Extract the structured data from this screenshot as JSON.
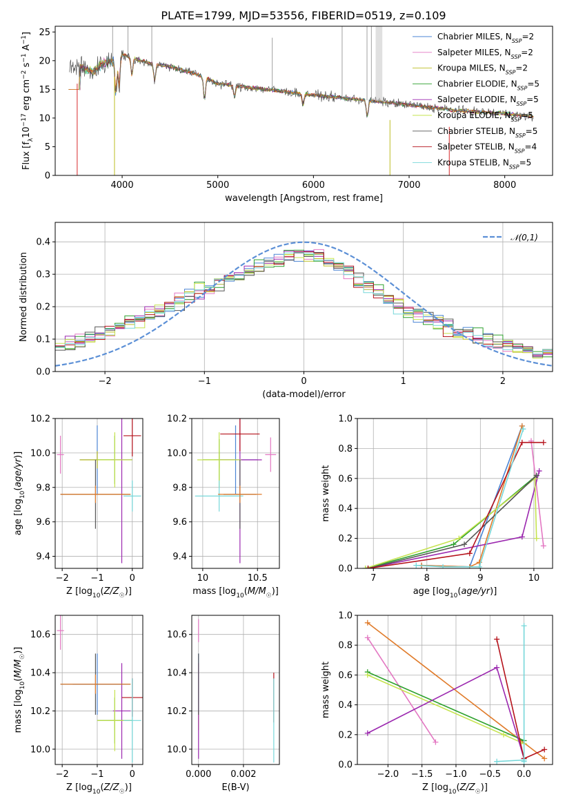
{
  "figure": {
    "title": "PLATE=1799, MJD=53556, FIBERID=0519, z=0.109",
    "models": [
      {
        "name": "Chabrier MILES",
        "nssp": "2",
        "color": "#4a84d4"
      },
      {
        "name": "Salpeter MILES",
        "nssp": "2",
        "color": "#e377c2"
      },
      {
        "name": "Kroupa MILES",
        "nssp": "2",
        "color": "#bcbd22"
      },
      {
        "name": "Chabrier ELODIE",
        "nssp": "5",
        "color": "#2ca02c"
      },
      {
        "name": "Salpeter ELODIE",
        "nssp": "5",
        "color": "#9b27af"
      },
      {
        "name": "Kroupa ELODIE",
        "nssp": "5",
        "color": "#c5e34e"
      },
      {
        "name": "Chabrier STELIB",
        "nssp": "5",
        "color": "#555555"
      },
      {
        "name": "Salpeter STELIB",
        "nssp": "4",
        "color": "#b5121b"
      },
      {
        "name": "Kroupa STELIB",
        "nssp": "5",
        "color": "#76d7d9"
      }
    ],
    "orange_color": "#e07b2a"
  },
  "chart_data": [
    {
      "id": "spectrum",
      "type": "line",
      "xlabel": "wavelength [Angstrom, rest frame]",
      "ylabel": "Flux [f_λ 10^-17 erg cm^-2 s^-1 A^-1]",
      "xlim": [
        3300,
        8500
      ],
      "ylim": [
        0,
        26
      ],
      "xticks": [
        4000,
        5000,
        6000,
        7000,
        8000
      ],
      "yticks": [
        0,
        5,
        10,
        15,
        20,
        25
      ],
      "grid": false,
      "legend": "upper-right",
      "continuum_x": [
        3550,
        3700,
        3800,
        3900,
        4000,
        4100,
        4300,
        4500,
        4800,
        5000,
        5500,
        6000,
        6500,
        7000,
        7500,
        8000,
        8300
      ],
      "continuum_y": [
        19,
        18,
        19.5,
        20,
        21,
        20.5,
        19.5,
        19,
        17.5,
        16,
        15,
        14,
        13.2,
        12.3,
        11.3,
        10.8,
        10.2
      ]
    },
    {
      "id": "residuals",
      "type": "line",
      "xlabel": "(data-model)/error",
      "ylabel": "Normed distribution",
      "xlim": [
        -2.5,
        2.5
      ],
      "ylim": [
        0,
        0.46
      ],
      "xticks": [
        -2,
        -1,
        0,
        1,
        2
      ],
      "yticks": [
        0.0,
        0.1,
        0.2,
        0.3,
        0.4
      ],
      "grid": true,
      "legend": "upper-right",
      "reference_label": "𝒩(0,1)",
      "reference_color": "#5b8fd6"
    },
    {
      "id": "age-vs-Z",
      "type": "scatter",
      "xlabel": "Z [log10(Z/Z☉)]",
      "ylabel": "age  [log10(age/yr)]",
      "xlim": [
        -2.2,
        0.3
      ],
      "ylim": [
        9.33,
        10.2
      ],
      "xticks": [
        -2,
        -1,
        0
      ],
      "yticks": [
        9.4,
        9.6,
        9.8,
        10.0,
        10.2
      ],
      "grid": true,
      "points": [
        {
          "m": 0,
          "x": -1.0,
          "y": 9.96,
          "ex": 0.5,
          "ey": 0.2
        },
        {
          "m": 1,
          "x": -2.05,
          "y": 9.99,
          "ex": 0.1,
          "ey": 0.11
        },
        {
          "m": 2,
          "x": -1.0,
          "y": 9.96,
          "ex": 0.5,
          "ey": 0.05
        },
        {
          "m": 3,
          "x": -0.5,
          "y": 9.96,
          "ex": 0.5,
          "ey": 0.14
        },
        {
          "m": 4,
          "x": -0.3,
          "y": 9.96,
          "ex": 0.3,
          "ey": 0.6
        },
        {
          "m": 5,
          "x": -0.5,
          "y": 9.96,
          "ex": 0.5,
          "ey": 0.16
        },
        {
          "m": 6,
          "x": -1.05,
          "y": 9.76,
          "ex": 1.0,
          "ey": 0.2
        },
        {
          "m": 7,
          "x": 0.0,
          "y": 10.1,
          "ex": 0.25,
          "ey": 0.12
        },
        {
          "m": 8,
          "x": 0.0,
          "y": 9.75,
          "ex": 0.25,
          "ey": 0.09
        },
        {
          "m": 9,
          "x": -1.05,
          "y": 9.76,
          "ex": 1.0,
          "ey": 0.05
        }
      ]
    },
    {
      "id": "age-vs-mass",
      "type": "scatter",
      "xlabel": "mass [log10(M/M☉)]",
      "ylabel": "",
      "xlim": [
        9.9,
        10.7
      ],
      "ylim": [
        9.33,
        10.2
      ],
      "xticks": [
        10.0,
        10.5
      ],
      "yticks": [
        9.4,
        9.6,
        9.8,
        10.0,
        10.2
      ],
      "grid": true,
      "points": [
        {
          "m": 0,
          "x": 10.3,
          "y": 9.96,
          "ex": 0.2,
          "ey": 0.2
        },
        {
          "m": 1,
          "x": 10.62,
          "y": 9.99,
          "ex": 0.05,
          "ey": 0.1
        },
        {
          "m": 2,
          "x": 10.15,
          "y": 9.96,
          "ex": 0.15,
          "ey": 0.05
        },
        {
          "m": 3,
          "x": 10.15,
          "y": 9.96,
          "ex": 0.15,
          "ey": 0.12
        },
        {
          "m": 4,
          "x": 10.34,
          "y": 9.96,
          "ex": 0.2,
          "ey": 0.6
        },
        {
          "m": 5,
          "x": 10.15,
          "y": 9.96,
          "ex": 0.2,
          "ey": 0.16
        },
        {
          "m": 6,
          "x": 10.34,
          "y": 9.76,
          "ex": 0.15,
          "ey": 0.2
        },
        {
          "m": 7,
          "x": 10.34,
          "y": 10.11,
          "ex": 0.18,
          "ey": 0.1
        },
        {
          "m": 8,
          "x": 10.15,
          "y": 9.75,
          "ex": 0.22,
          "ey": 0.09
        },
        {
          "m": 9,
          "x": 10.34,
          "y": 9.76,
          "ex": 0.2,
          "ey": 0.05
        }
      ]
    },
    {
      "id": "weight-vs-age",
      "type": "line",
      "xlabel": "age  [log10(age/yr)]",
      "ylabel": "mass weight",
      "xlim": [
        6.7,
        10.35
      ],
      "ylim": [
        0,
        1
      ],
      "xticks": [
        7,
        8,
        9,
        10
      ],
      "yticks": [
        0.0,
        0.2,
        0.4,
        0.6,
        0.8,
        1.0
      ],
      "grid": true,
      "series": [
        {
          "m": 0,
          "x": [
            7.9,
            8.8,
            9.78
          ],
          "y": [
            0.02,
            0.01,
            0.95
          ]
        },
        {
          "m": 1,
          "x": [
            9.95,
            10.18
          ],
          "y": [
            0.85,
            0.15
          ]
        },
        {
          "m": 9,
          "x": [
            7.9,
            8.8,
            8.98,
            9.78
          ],
          "y": [
            0.02,
            0.01,
            0.04,
            0.95
          ]
        },
        {
          "m": 3,
          "x": [
            6.85,
            8.5,
            10.05
          ],
          "y": [
            0.0,
            0.16,
            0.62
          ]
        },
        {
          "m": 4,
          "x": [
            6.9,
            9.78,
            10.1
          ],
          "y": [
            0.0,
            0.21,
            0.65
          ]
        },
        {
          "m": 5,
          "x": [
            6.85,
            8.6,
            10.02,
            10.05
          ],
          "y": [
            0.0,
            0.2,
            0.6,
            0.2
          ]
        },
        {
          "m": 6,
          "x": [
            6.9,
            8.7,
            10.05
          ],
          "y": [
            0.0,
            0.16,
            0.62
          ]
        },
        {
          "m": 7,
          "x": [
            6.9,
            8.8,
            9.78,
            10.18
          ],
          "y": [
            0.0,
            0.1,
            0.84,
            0.84
          ]
        },
        {
          "m": 8,
          "x": [
            7.8,
            8.3,
            8.98,
            9.8
          ],
          "y": [
            0.02,
            0.01,
            0.01,
            0.93
          ]
        }
      ]
    },
    {
      "id": "mass-vs-Z",
      "type": "scatter",
      "xlabel": "Z [log10(Z/Z☉)]",
      "ylabel": "mass [log10(M/M☉)]",
      "xlim": [
        -2.2,
        0.3
      ],
      "ylim": [
        9.92,
        10.7
      ],
      "xticks": [
        -2,
        -1,
        0
      ],
      "yticks": [
        10.0,
        10.2,
        10.4,
        10.6
      ],
      "grid": true,
      "points": [
        {
          "m": 0,
          "x": -1.0,
          "y": 10.34,
          "ex": 0.7,
          "ey": 0.16
        },
        {
          "m": 1,
          "x": -2.05,
          "y": 10.62,
          "ex": 0.1,
          "ey": 0.1
        },
        {
          "m": 2,
          "x": -0.5,
          "y": 10.15,
          "ex": 0.5,
          "ey": 0.05
        },
        {
          "m": 3,
          "x": -0.5,
          "y": 10.15,
          "ex": 0.5,
          "ey": 0.12
        },
        {
          "m": 4,
          "x": -0.3,
          "y": 10.2,
          "ex": 0.25,
          "ey": 0.25
        },
        {
          "m": 5,
          "x": -0.5,
          "y": 10.15,
          "ex": 0.5,
          "ey": 0.16
        },
        {
          "m": 6,
          "x": -1.05,
          "y": 10.34,
          "ex": 1.0,
          "ey": 0.16
        },
        {
          "m": 7,
          "x": 0.0,
          "y": 10.27,
          "ex": 0.3,
          "ey": 0.1
        },
        {
          "m": 8,
          "x": 0.0,
          "y": 10.15,
          "ex": 0.25,
          "ey": 0.22
        },
        {
          "m": 9,
          "x": -1.05,
          "y": 10.34,
          "ex": 1.0,
          "ey": 0.05
        }
      ]
    },
    {
      "id": "mass-vs-ebv",
      "type": "scatter",
      "xlabel": "E(B-V)",
      "ylabel": "",
      "xlim": [
        -0.0003,
        0.0036
      ],
      "ylim": [
        9.92,
        10.7
      ],
      "xticks": [
        0.0,
        0.002
      ],
      "yticks": [
        10.0,
        10.2,
        10.4,
        10.6
      ],
      "xtick_labels": [
        "0.000",
        "0.002"
      ],
      "grid": true,
      "points": [
        {
          "m": 0,
          "x": 0.0,
          "y": 10.34,
          "ex": 0.0,
          "ey": 0.16
        },
        {
          "m": 1,
          "x": 0.0,
          "y": 10.62,
          "ex": 0.0,
          "ey": 0.06
        },
        {
          "m": 2,
          "x": 0.0,
          "y": 10.15,
          "ex": 0.0,
          "ey": 0.05
        },
        {
          "m": 4,
          "x": 0.0,
          "y": 10.2,
          "ex": 0.0,
          "ey": 0.25
        },
        {
          "m": 6,
          "x": 0.0,
          "y": 10.34,
          "ex": 0.0,
          "ey": 0.16
        },
        {
          "m": 7,
          "x": 0.00335,
          "y": 10.27,
          "ex": 0.0,
          "ey": 0.13
        },
        {
          "m": 8,
          "x": 0.00335,
          "y": 10.15,
          "ex": 0.0,
          "ey": 0.22
        }
      ]
    },
    {
      "id": "weight-vs-Z",
      "type": "line",
      "xlabel": "Z [log10(Z/Z☉)]",
      "ylabel": "mass weight",
      "xlim": [
        -2.45,
        0.42
      ],
      "ylim": [
        0,
        1
      ],
      "xticks": [
        -2.0,
        -1.5,
        -1.0,
        -0.5,
        0.0
      ],
      "xtick_labels": [
        "−2.0",
        "−1.5",
        "−1.0",
        "−0.5",
        "0.0"
      ],
      "yticks": [
        0.0,
        0.2,
        0.4,
        0.6,
        0.8,
        1.0
      ],
      "grid": true,
      "series": [
        {
          "m": 9,
          "x": [
            -2.3,
            0.3
          ],
          "y": [
            0.95,
            0.04
          ]
        },
        {
          "m": 1,
          "x": [
            -2.3,
            -1.3
          ],
          "y": [
            0.85,
            0.15
          ]
        },
        {
          "m": 3,
          "x": [
            -2.3,
            0.0
          ],
          "y": [
            0.62,
            0.16
          ]
        },
        {
          "m": 5,
          "x": [
            -2.3,
            -0.3,
            0.0
          ],
          "y": [
            0.6,
            0.2,
            0.14
          ]
        },
        {
          "m": 4,
          "x": [
            -2.3,
            -0.4,
            0.0
          ],
          "y": [
            0.21,
            0.65,
            0.04
          ]
        },
        {
          "m": 7,
          "x": [
            -0.4,
            0.0,
            0.3
          ],
          "y": [
            0.84,
            0.04,
            0.1
          ]
        },
        {
          "m": 8,
          "x": [
            -0.4,
            0.0,
            0.0,
            0.0
          ],
          "y": [
            0.02,
            0.03,
            0.93,
            0.02
          ]
        }
      ]
    }
  ]
}
